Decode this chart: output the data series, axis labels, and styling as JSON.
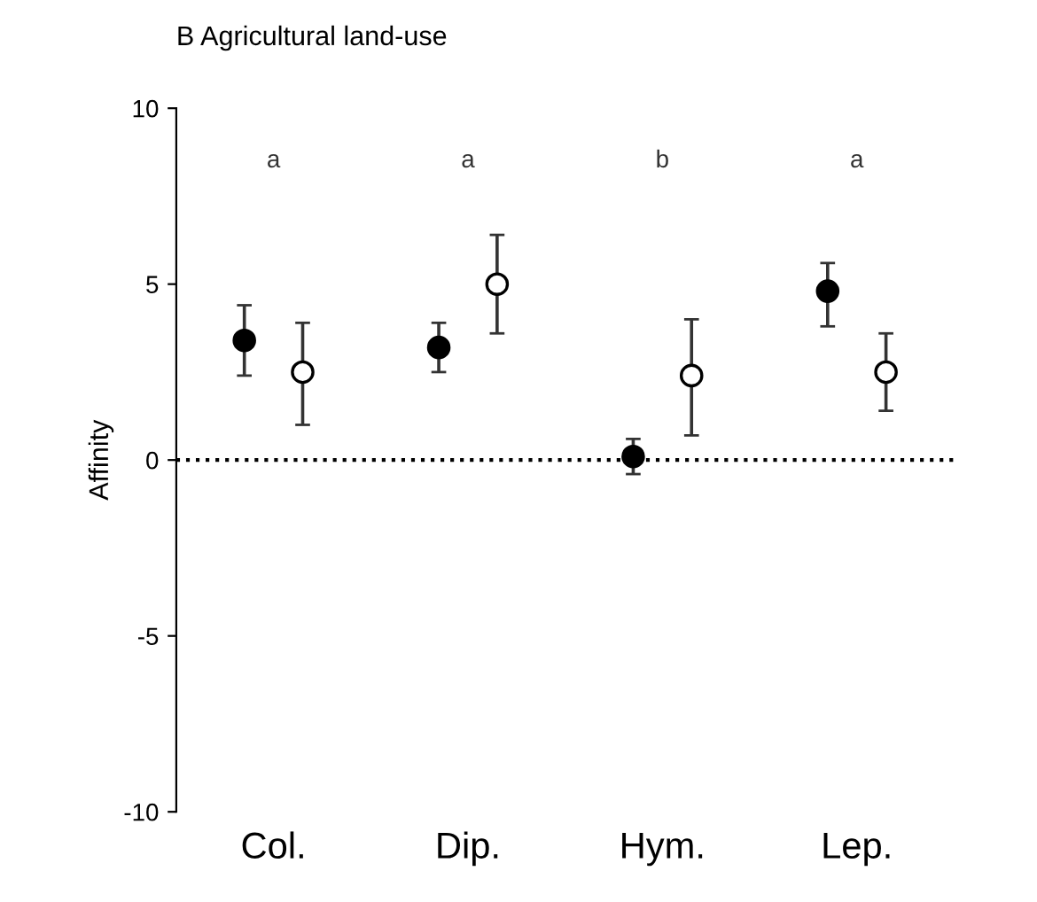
{
  "chart_data": {
    "type": "scatter",
    "title": "B Agricultural land-use",
    "ylabel": "Affinity",
    "categories": [
      "Col.",
      "Dip.",
      "Hym.",
      "Lep."
    ],
    "series": [
      {
        "color": "#000000",
        "values": [
          3.4,
          3.2,
          0.1,
          4.8
        ],
        "errors": [
          [
            2.4,
            4.4
          ],
          [
            2.5,
            3.9
          ],
          [
            -0.4,
            0.6
          ],
          [
            3.8,
            5.6
          ]
        ]
      },
      {
        "color": "#ffffff",
        "values": [
          2.5,
          5.0,
          2.4,
          2.5
        ],
        "errors": [
          [
            1.0,
            3.9
          ],
          [
            3.6,
            6.4
          ],
          [
            0.7,
            4.0
          ],
          [
            1.4,
            3.6
          ]
        ]
      }
    ],
    "ylim": [
      -10,
      10
    ],
    "yticks": [
      -10,
      -5,
      0,
      5,
      10
    ],
    "grid": false,
    "marker": "circle",
    "ref_lines": [
      {
        "axis": "y",
        "value": 0,
        "line_style": "dotted",
        "color": "#000000"
      }
    ],
    "annotations": [
      "a",
      "a",
      "b",
      "a"
    ]
  }
}
